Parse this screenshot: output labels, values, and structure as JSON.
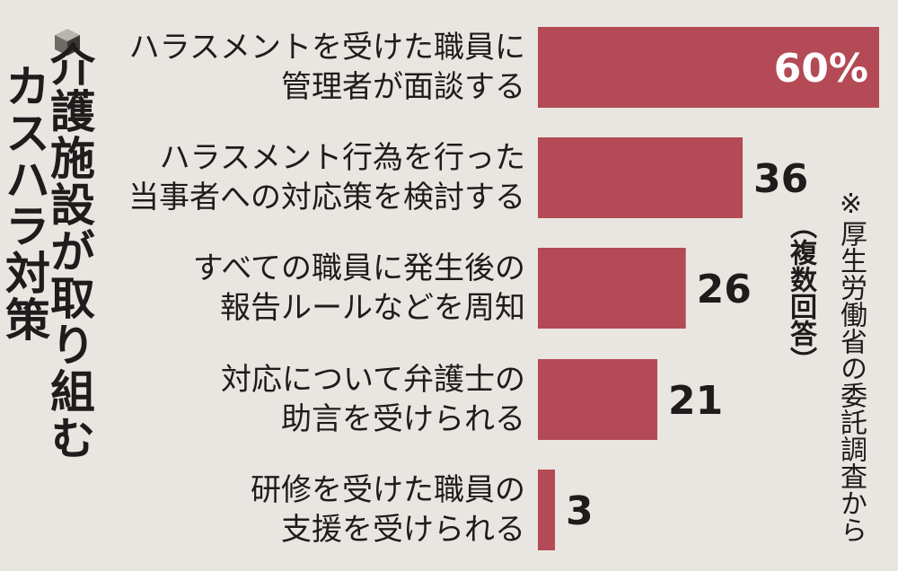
{
  "header": {
    "title": "介護施設が取り組む",
    "subtitle": "カスハラ対策",
    "note": "※厚生労働省の委託調査から",
    "note_sub": "（複数回答）"
  },
  "colors": {
    "bar": "#b34a55",
    "text": "#1e1c1c",
    "background": "#e9e6e1"
  },
  "chart_data": {
    "type": "bar",
    "orientation": "horizontal",
    "unit": "%",
    "categories": [
      [
        "ハラスメントを受けた職員に",
        "管理者が面談する"
      ],
      [
        "ハラスメント行為を行った",
        "当事者への対応策を検討する"
      ],
      [
        "すべての職員に発生後の",
        "報告ルールなどを周知"
      ],
      [
        "対応について弁護士の",
        "助言を受けられる"
      ],
      [
        "研修を受けた職員の",
        "支援を受けられる"
      ]
    ],
    "values": [
      60,
      36,
      26,
      21,
      3
    ],
    "value_labels": [
      "60%",
      "36",
      "26",
      "21",
      "3"
    ],
    "xlim": [
      0,
      60
    ],
    "grid": false,
    "legend": "none"
  }
}
